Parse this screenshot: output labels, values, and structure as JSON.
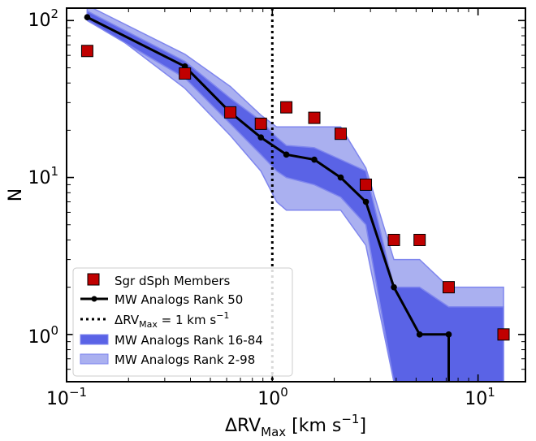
{
  "chart_data": {
    "type": "line",
    "xscale": "log",
    "yscale": "log",
    "xlim": [
      0.1,
      17
    ],
    "ylim": [
      0.5,
      120
    ],
    "xlabel": {
      "base": "ΔRV",
      "sub": "Max",
      "unit": " [km s",
      "sup": "−1",
      "close": "]"
    },
    "ylabel": "N",
    "x_ticks": [
      {
        "value": 0.1,
        "base": "10",
        "exp": "−1"
      },
      {
        "value": 1,
        "base": "10",
        "exp": "0"
      },
      {
        "value": 10,
        "base": "10",
        "exp": "1"
      }
    ],
    "y_ticks": [
      {
        "value": 1,
        "base": "10",
        "exp": "0"
      },
      {
        "value": 10,
        "base": "10",
        "exp": "1"
      },
      {
        "value": 100,
        "base": "10",
        "exp": "2"
      }
    ],
    "vline": {
      "x": 1
    },
    "band_outer": {
      "x": [
        0.126,
        0.376,
        0.625,
        0.88,
        1.05,
        1.17,
        1.6,
        2.15,
        2.85,
        3.9,
        5.2,
        7.2,
        13.3
      ],
      "lower": [
        110,
        37,
        18.5,
        11,
        7,
        6.2,
        6.2,
        6.2,
        3.7,
        0.5,
        0.5,
        0.5,
        0.5
      ],
      "upper": [
        125,
        61,
        38,
        25,
        21,
        21,
        21,
        21,
        11.5,
        3,
        3,
        2,
        2
      ]
    },
    "band_inner": {
      "x": [
        0.126,
        0.376,
        0.625,
        0.88,
        1.05,
        1.17,
        1.6,
        2.15,
        2.85,
        3.9,
        5.2,
        7.2,
        13.3
      ],
      "lower": [
        100,
        43,
        22,
        14,
        11,
        10,
        9,
        7.5,
        5,
        0.5,
        0.5,
        0.5,
        0.5
      ],
      "upper": [
        115,
        55,
        32,
        23,
        18,
        16,
        15.5,
        13,
        11,
        2,
        2,
        1.5,
        1.5
      ]
    },
    "series": [
      {
        "name": "MW Analogs Rank 50",
        "x": [
          0.126,
          0.376,
          0.625,
          0.88,
          1.17,
          1.6,
          2.15,
          2.85,
          3.9,
          5.2,
          7.2,
          7.2
        ],
        "y": [
          105,
          51,
          26,
          18,
          14,
          13,
          10,
          7,
          2,
          1,
          1,
          0.5
        ]
      },
      {
        "name": "Sgr dSph Members",
        "x": [
          0.126,
          0.376,
          0.625,
          0.88,
          1.17,
          1.6,
          2.15,
          2.85,
          3.9,
          5.2,
          7.2,
          13.3
        ],
        "y": [
          64,
          46,
          26,
          22,
          28,
          24,
          19,
          9,
          4,
          4,
          2,
          1
        ]
      }
    ],
    "legend": {
      "position": "lower-left",
      "entries": [
        {
          "key": "marker",
          "label": "Sgr dSph Members"
        },
        {
          "key": "line",
          "label": "MW Analogs Rank 50"
        },
        {
          "key": "dotted",
          "label_base": "ΔRV",
          "label_sub": "Max",
          "label_rest": " = 1 km s",
          "label_sup": "−1"
        },
        {
          "key": "band_inner",
          "label": "MW Analogs Rank 16-84"
        },
        {
          "key": "band_outer",
          "label": "MW Analogs Rank 2-98"
        }
      ]
    },
    "colors": {
      "marker_fill": "#c00000",
      "marker_edge": "#000000",
      "line": "#000000",
      "band_inner": "#5a63e6",
      "band_outer": "#aab0f0",
      "band_edge": "#7f86ee"
    }
  }
}
